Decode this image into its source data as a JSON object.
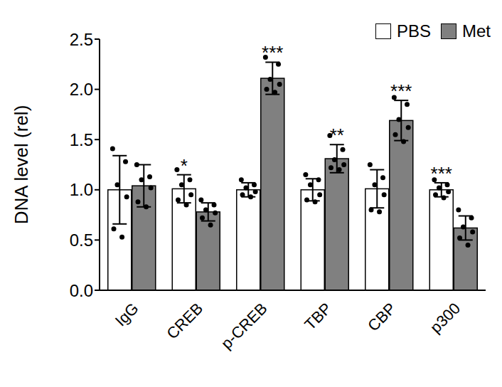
{
  "chart_data": {
    "type": "bar",
    "y_label": "DNA level (rel)",
    "categories": [
      "IgG",
      "CREB",
      "p-CREB",
      "TBP",
      "CBP",
      "p300"
    ],
    "series": [
      {
        "name": "PBS",
        "color": "#ffffff",
        "values": [
          1.0,
          1.01,
          1.0,
          1.0,
          1.01,
          1.0
        ],
        "error": [
          0.34,
          0.14,
          0.07,
          0.11,
          0.19,
          0.07
        ],
        "points": [
          [
            1.41,
            1.28,
            1.05,
            0.93,
            0.61,
            0.53
          ],
          [
            1.2,
            1.1,
            1.05,
            0.95,
            0.9,
            0.85
          ],
          [
            1.1,
            1.05,
            1.02,
            0.98,
            0.95,
            0.93
          ],
          [
            1.15,
            1.1,
            1.05,
            0.95,
            0.9,
            0.88
          ],
          [
            1.25,
            1.12,
            1.05,
            0.95,
            0.8,
            0.78
          ],
          [
            1.1,
            1.05,
            1.02,
            0.98,
            0.95,
            0.92
          ]
        ]
      },
      {
        "name": "Met",
        "color": "#808080",
        "values": [
          1.04,
          0.78,
          2.11,
          1.31,
          1.69,
          0.62
        ],
        "error": [
          0.21,
          0.09,
          0.16,
          0.14,
          0.2,
          0.12
        ],
        "points": [
          [
            1.25,
            1.13,
            1.1,
            1.02,
            0.88,
            0.83
          ],
          [
            0.9,
            0.85,
            0.8,
            0.77,
            0.72,
            0.65
          ],
          [
            2.32,
            2.25,
            2.1,
            2.05,
            2.0,
            1.97
          ],
          [
            1.54,
            1.4,
            1.3,
            1.25,
            1.22,
            1.2
          ],
          [
            1.92,
            1.85,
            1.7,
            1.62,
            1.55,
            1.48
          ],
          [
            0.8,
            0.72,
            0.63,
            0.58,
            0.52,
            0.45
          ]
        ]
      }
    ],
    "annotations": [
      {
        "category": "CREB",
        "series": "PBS",
        "text": "*"
      },
      {
        "category": "p-CREB",
        "series": "Met",
        "text": "***"
      },
      {
        "category": "TBP",
        "series": "Met",
        "text": "**"
      },
      {
        "category": "CBP",
        "series": "Met",
        "text": "***"
      },
      {
        "category": "p300",
        "series": "PBS",
        "text": "***"
      }
    ],
    "ylim": [
      0,
      2.5
    ],
    "yticks": [
      {
        "value": 0,
        "label": "0.0"
      },
      {
        "value": 0.5,
        "label": "0.5"
      },
      {
        "value": 1,
        "label": "1.0"
      },
      {
        "value": 1.5,
        "label": "1.5"
      },
      {
        "value": 2,
        "label": "2.0"
      },
      {
        "value": 2.5,
        "label": "2.5"
      }
    ],
    "legend": "upper right"
  }
}
